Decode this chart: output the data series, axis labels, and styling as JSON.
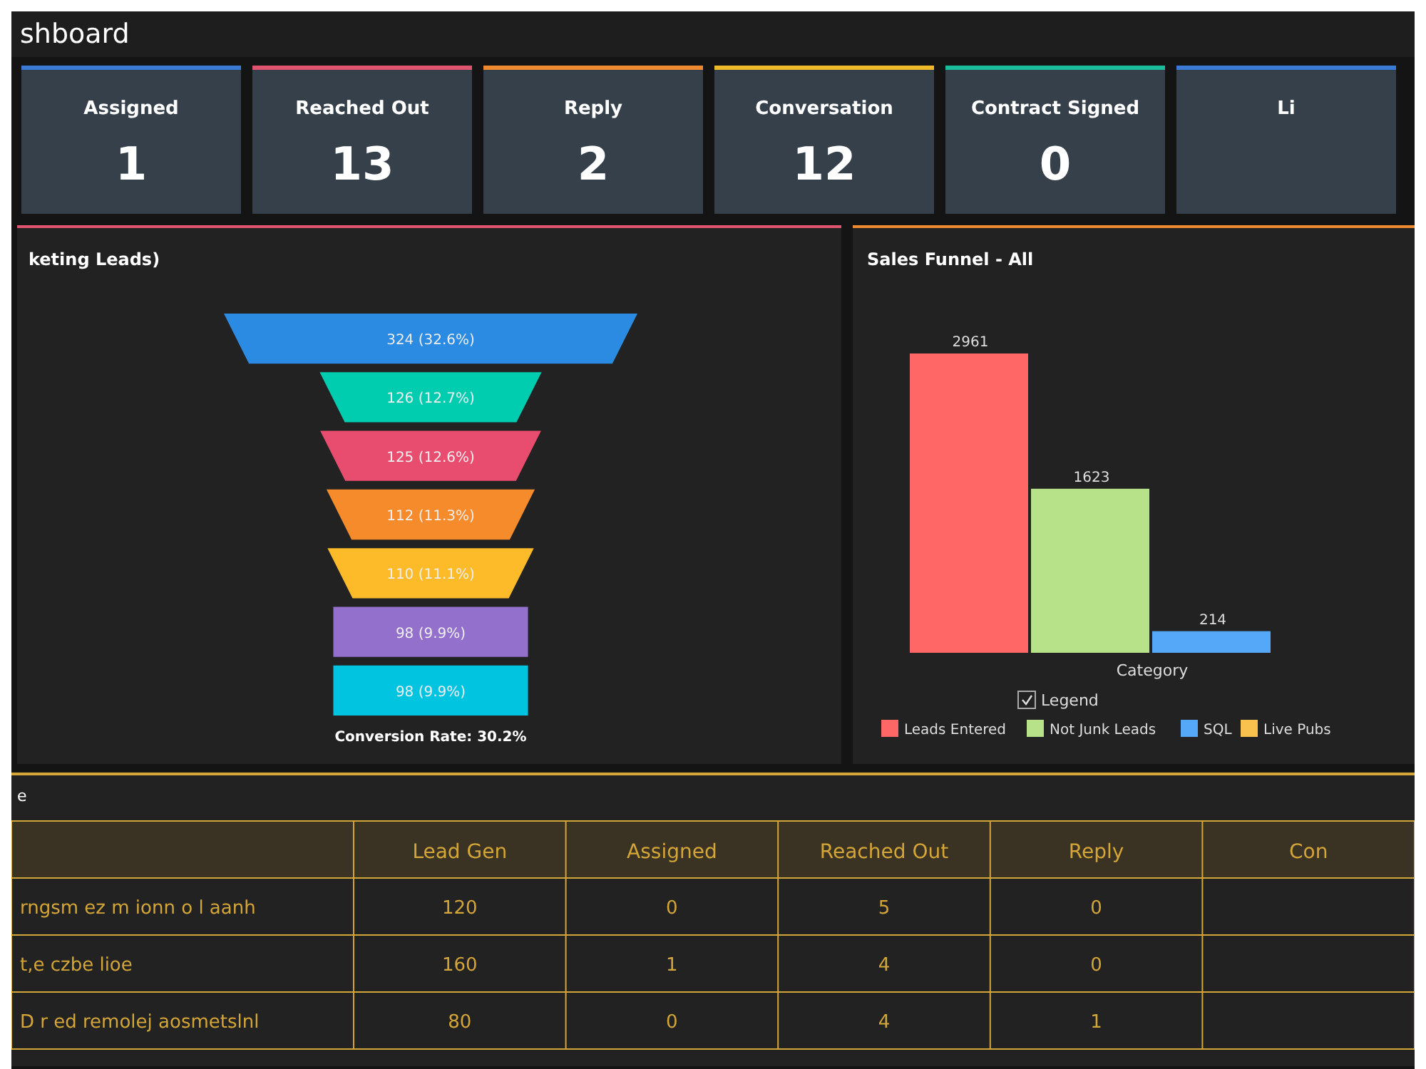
{
  "chart_data": [
    {
      "type": "other",
      "title": "shboard",
      "annotations": [
        "Assigned",
        "1",
        "Reached Out",
        "13",
        "Reply",
        "2",
        "Conversation",
        "12",
        "Contract Signed",
        "0",
        "Li"
      ]
    },
    {
      "type": "other",
      "title": "keting Leads)",
      "categories": [
        null,
        null,
        null,
        null,
        null,
        null,
        null
      ],
      "values": [
        324,
        126,
        125,
        112,
        110,
        98,
        98
      ],
      "value_labels": [
        "324 (32.6%)",
        "126 (12.7%)",
        "125 (12.6%)",
        "112 (11.3%)",
        "110 (11.1%)",
        "98 (9.9%)",
        "98 (9.9%)"
      ],
      "colors": [
        "#2b8ae2",
        "#00cdb0",
        "#e84d6f",
        "#f68b2c",
        "#fdbb2a",
        "#9270cc",
        "#00c4e0"
      ],
      "annotations": [
        "Conversion Rate: 30.2%"
      ]
    },
    {
      "type": "bar",
      "title": "Sales Funnel - All",
      "xlabel": "Category",
      "legend_title": "Legend",
      "legend": "bottom",
      "data_labels": true,
      "categories": [
        null
      ],
      "series": [
        {
          "name": "Leads Entered",
          "color": "#ff6666",
          "values": [
            2961
          ]
        },
        {
          "name": "Not Junk Leads",
          "color": "#b8e28a",
          "values": [
            1623
          ]
        },
        {
          "name": "SQL",
          "color": "#55a7f7",
          "values": [
            214
          ]
        },
        {
          "name": "Live Pubs",
          "color": "#f9c14e",
          "values": [
            null
          ]
        }
      ]
    },
    {
      "type": "heatmap",
      "title": "e",
      "data_labels": true,
      "categories": [
        "Lead Gen",
        "Assigned",
        "Reached Out",
        "Reply",
        "Con"
      ],
      "y_categories": [
        "rngsm ez m ionn o l aanh",
        "t,e czbe lioe",
        "D r ed remolej aosmetslnl"
      ],
      "cells": [
        [
          120,
          0,
          5,
          0,
          null
        ],
        [
          160,
          1,
          4,
          0,
          null
        ],
        [
          80,
          0,
          4,
          1,
          null
        ]
      ]
    }
  ]
}
